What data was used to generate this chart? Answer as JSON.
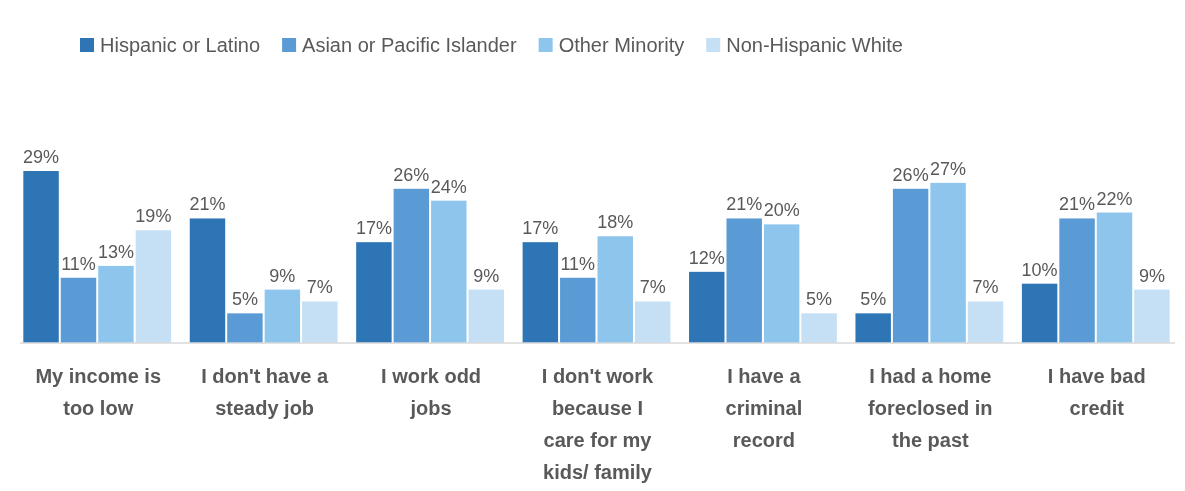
{
  "chart_data": {
    "type": "bar",
    "categories": [
      "My income is too low",
      "I don't have a steady job",
      "I work odd jobs",
      "I don't work because I care for my kids/ family",
      "I have a criminal record",
      "I had a home foreclosed in the past",
      "I have bad credit"
    ],
    "series": [
      {
        "name": "Hispanic or Latino",
        "color": "#2e75b6",
        "values": [
          29,
          21,
          17,
          17,
          12,
          5,
          10
        ],
        "value_labels": [
          "29%",
          "21%",
          "17%",
          "17%",
          "12%",
          "5%",
          "10%"
        ]
      },
      {
        "name": "Asian or Pacific Islander",
        "color": "#5b9bd5",
        "values": [
          11,
          5,
          26,
          11,
          21,
          26,
          21
        ],
        "value_labels": [
          "11%",
          "5%",
          "26%",
          "11%",
          "21%",
          "26%",
          "21%"
        ]
      },
      {
        "name": "Other Minority",
        "color": "#8ec5ed",
        "values": [
          13,
          9,
          24,
          18,
          20,
          27,
          22
        ],
        "value_labels": [
          "13%",
          "9%",
          "24%",
          "18%",
          "20%",
          "27%",
          "22%"
        ]
      },
      {
        "name": "Non-Hispanic White",
        "color": "#c5e0f4",
        "values": [
          19,
          7,
          9,
          7,
          5,
          7,
          9
        ],
        "value_labels": [
          "19%",
          "7%",
          "9%",
          "7%",
          "5%",
          "7%",
          "9%"
        ]
      }
    ],
    "legend": "top"
  }
}
